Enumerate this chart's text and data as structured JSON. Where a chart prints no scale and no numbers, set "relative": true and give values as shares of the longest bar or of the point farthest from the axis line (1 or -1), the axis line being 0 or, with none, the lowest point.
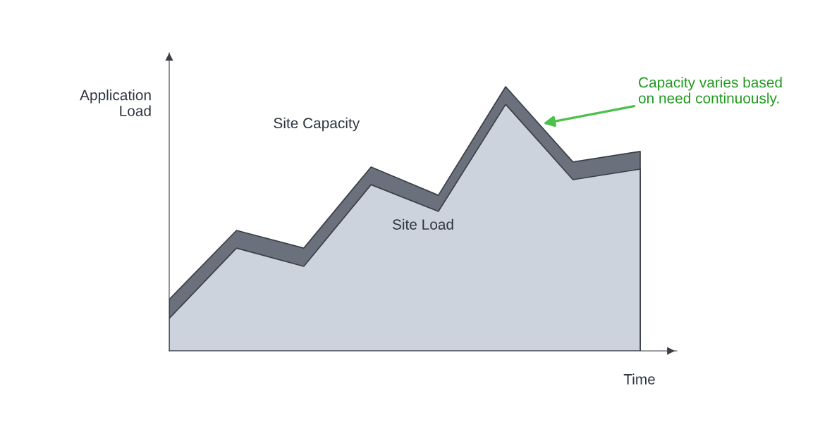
{
  "chart_data": {
    "type": "area",
    "relative": true,
    "xlabel": "Time",
    "ylabel": "Application Load",
    "categories": [
      null,
      null,
      null,
      null,
      null,
      null,
      null,
      null
    ],
    "series": [
      {
        "name": "Site Capacity",
        "color": "#6b717c",
        "values": [
          0.195,
          0.456,
          0.389,
          0.696,
          0.589,
          1.0,
          0.715,
          0.755
        ]
      },
      {
        "name": "Site Load",
        "color": "#ccd3dd",
        "values": [
          0.123,
          0.389,
          0.32,
          0.629,
          0.528,
          0.933,
          0.648,
          0.688
        ]
      }
    ],
    "annotations": [
      "Capacity varies based\non need continuously."
    ],
    "grid": false,
    "legend": false
  }
}
